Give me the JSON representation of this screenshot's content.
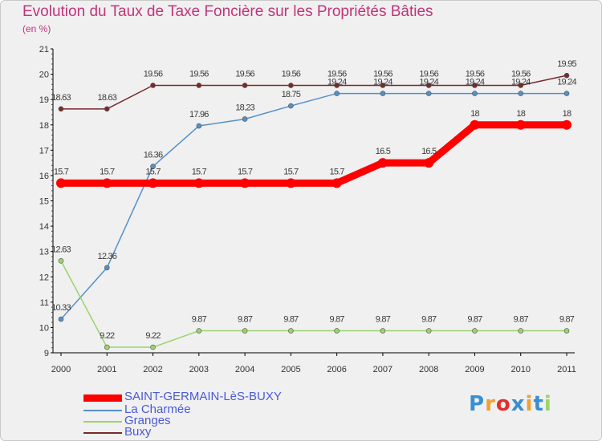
{
  "chart_data": {
    "type": "line",
    "title": "Evolution du Taux de Taxe Foncière sur les Propriétés Bâties",
    "unit_label": "(en %)",
    "x": [
      "2000",
      "2001",
      "2002",
      "2003",
      "2004",
      "2005",
      "2006",
      "2007",
      "2008",
      "2009",
      "2010",
      "2011"
    ],
    "ylim": [
      9,
      21
    ],
    "yticks": [
      9,
      10,
      11,
      12,
      13,
      14,
      15,
      16,
      17,
      18,
      19,
      20,
      21
    ],
    "grid": false,
    "legend_position": "bottom-left",
    "series": [
      {
        "name": "SAINT-GERMAIN-LèS-BUXY",
        "color": "#ff0000",
        "bold": true,
        "values": [
          15.7,
          15.7,
          15.7,
          15.7,
          15.7,
          15.7,
          15.7,
          16.5,
          16.5,
          18,
          18,
          18
        ],
        "labels": [
          "15.7",
          "15.7",
          "15.7",
          "15.7",
          "15.7",
          "15.7",
          "15.7",
          "16.5",
          "16.5",
          "18",
          "18",
          "18"
        ]
      },
      {
        "name": "La Charmée",
        "color": "#5590c8",
        "bold": false,
        "values": [
          10.33,
          12.36,
          16.36,
          17.96,
          18.23,
          18.75,
          19.24,
          19.24,
          19.24,
          19.24,
          19.24,
          19.24
        ],
        "labels": [
          "10.33",
          "12.36",
          "16.36",
          "17.96",
          "18.23",
          "18.75",
          "19.24",
          "19.24",
          "19.24",
          "19.24",
          "19.24",
          "19.24"
        ]
      },
      {
        "name": "Granges",
        "color": "#9ad46a",
        "bold": false,
        "values": [
          12.63,
          9.22,
          9.22,
          9.87,
          9.87,
          9.87,
          9.87,
          9.87,
          9.87,
          9.87,
          9.87,
          9.87
        ],
        "labels": [
          "12.63",
          "9.22",
          "9.22",
          "9.87",
          "9.87",
          "9.87",
          "9.87",
          "9.87",
          "9.87",
          "9.87",
          "9.87",
          "9.87"
        ]
      },
      {
        "name": "Buxy",
        "color": "#7a2a2a",
        "bold": false,
        "values": [
          18.63,
          18.63,
          19.56,
          19.56,
          19.56,
          19.56,
          19.56,
          19.56,
          19.56,
          19.56,
          19.56,
          19.95
        ],
        "labels": [
          "18.63",
          "18.63",
          "19.56",
          "19.56",
          "19.56",
          "19.56",
          "19.56",
          "19.56",
          "19.56",
          "19.56",
          "19.56",
          "19.95"
        ]
      }
    ]
  },
  "logo": {
    "text": "Proxiti",
    "letters": [
      "P",
      "r",
      "o",
      "x",
      "i",
      "t",
      "i"
    ],
    "colors": [
      "#3a8fd0",
      "#f0a030",
      "#e03030",
      "#3a8fd0",
      "#f0a030",
      "#3a8fd0",
      "#9ad46a"
    ]
  }
}
